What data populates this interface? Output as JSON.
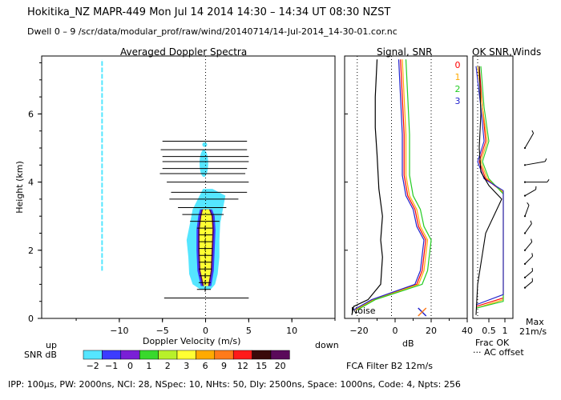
{
  "header": {
    "line1": "Hokitika_NZ   MAPR-449   Mon Jul 14 2014 14:30 – 14:34 UT 08:30 NZST",
    "line2": "Dwell   0 –   9    /scr/data/modular_prof/raw/wind/20140714/14-Jul-2014_14-30-01.cor.nc"
  },
  "footer": {
    "params": "IPP: 100μs,  PW: 2000ns,  NCI:  28,  NSpec: 10,  NHts: 50,  Dly: 2500ns,  Space: 1000ns,  Code: 4,  Npts: 256",
    "filter": "FCA Filter B2 12m/s"
  },
  "colors": {
    "snr_scale": [
      "#55e6ff",
      "#3c3cff",
      "#7a1fd6",
      "#39d92c",
      "#b8f02a",
      "#ffff33",
      "#ffaa00",
      "#ff7a1a",
      "#ff1a1a",
      "#3a0a0a",
      "#5a0a5a"
    ],
    "spectrum_outer": "#55e6ff",
    "spectrum_core": "#ffff33",
    "band_dark": "#3c3cff",
    "band_purple": "#5a0a5a",
    "speed_colors": [
      "#ff0000",
      "#ffaa00",
      "#22cc22",
      "#2222cc"
    ]
  },
  "chart_data": [
    {
      "id": "doppler_spectra",
      "type": "heatmap",
      "title": "Averaged Doppler Spectra",
      "xlabel": "Doppler Velocity (m/s)",
      "ylabel": "Height (km)",
      "xlim": [
        -19,
        15
      ],
      "ylim": [
        0,
        7.7
      ],
      "xticks": [
        -10,
        -5,
        0,
        5,
        10
      ],
      "yticks": [
        0,
        2,
        4,
        6
      ],
      "side_labels": {
        "left": "up",
        "right": "down"
      },
      "spectrum_cyan_extent": [
        {
          "h": 0.85,
          "lo": -0.6,
          "hi": 0.6
        },
        {
          "h": 1.0,
          "lo": -1.5,
          "hi": 1.1
        },
        {
          "h": 1.3,
          "lo": -1.9,
          "hi": 1.4
        },
        {
          "h": 1.8,
          "lo": -2.0,
          "hi": 1.6
        },
        {
          "h": 2.3,
          "lo": -2.2,
          "hi": 1.6
        },
        {
          "h": 2.8,
          "lo": -1.8,
          "hi": 1.7
        },
        {
          "h": 3.2,
          "lo": -1.5,
          "hi": 2.0
        },
        {
          "h": 3.6,
          "lo": -0.7,
          "hi": 2.3
        },
        {
          "h": 3.8,
          "lo": -0.3,
          "hi": 0.8
        }
      ],
      "spectrum_core_extent": [
        {
          "h": 0.95,
          "lo": -0.2,
          "hi": 0.3
        },
        {
          "h": 1.4,
          "lo": -0.6,
          "hi": 0.6
        },
        {
          "h": 2.0,
          "lo": -0.7,
          "hi": 0.7
        },
        {
          "h": 2.6,
          "lo": -0.7,
          "hi": 0.8
        },
        {
          "h": 3.0,
          "lo": -0.5,
          "hi": 0.7
        },
        {
          "h": 3.2,
          "lo": -0.3,
          "hi": 0.4
        }
      ],
      "upper_blob": {
        "h_center": 4.55,
        "v_center": -0.2,
        "h_half": 0.4,
        "v_half": 0.5
      },
      "upper_dot": {
        "h": 5.1,
        "v": -0.1
      },
      "noise_line": {
        "v": -12,
        "h_start": 1.4,
        "h_end": 7.6
      },
      "error_bars": [
        {
          "h": 0.6,
          "lo": -4.8,
          "hi": 5.0
        },
        {
          "h": 0.85,
          "lo": -1.0,
          "hi": 0.6
        },
        {
          "h": 1.05,
          "lo": -0.8,
          "hi": 0.6
        },
        {
          "h": 1.25,
          "lo": -0.7,
          "hi": 0.6
        },
        {
          "h": 1.45,
          "lo": -0.8,
          "hi": 0.7
        },
        {
          "h": 1.65,
          "lo": -0.8,
          "hi": 0.7
        },
        {
          "h": 1.85,
          "lo": -0.8,
          "hi": 0.8
        },
        {
          "h": 2.05,
          "lo": -0.8,
          "hi": 0.8
        },
        {
          "h": 2.25,
          "lo": -0.8,
          "hi": 0.8
        },
        {
          "h": 2.45,
          "lo": -0.8,
          "hi": 0.8
        },
        {
          "h": 2.65,
          "lo": -1.0,
          "hi": 0.8
        },
        {
          "h": 2.85,
          "lo": -1.8,
          "hi": 1.6
        },
        {
          "h": 3.05,
          "lo": -2.7,
          "hi": 2.1
        },
        {
          "h": 3.25,
          "lo": -3.2,
          "hi": 2.4
        },
        {
          "h": 3.5,
          "lo": -4.2,
          "hi": 3.8
        },
        {
          "h": 3.7,
          "lo": -4.0,
          "hi": 4.8
        },
        {
          "h": 4.0,
          "lo": -4.5,
          "hi": 5.0
        },
        {
          "h": 4.25,
          "lo": -5.3,
          "hi": 4.6
        },
        {
          "h": 4.4,
          "lo": -5.0,
          "hi": 4.8
        },
        {
          "h": 4.6,
          "lo": -5.0,
          "hi": 5.0
        },
        {
          "h": 4.75,
          "lo": -5.0,
          "hi": 5.0
        },
        {
          "h": 4.95,
          "lo": -5.2,
          "hi": 4.8
        },
        {
          "h": 5.2,
          "lo": -5.0,
          "hi": 4.8
        }
      ],
      "colorbar": {
        "label": "SNR dB",
        "ticks": [
          "−2",
          "−1",
          "0",
          "1",
          "2",
          "3",
          "6",
          "9",
          "12",
          "15",
          "20"
        ]
      }
    },
    {
      "id": "signal_snr",
      "type": "line",
      "title": "Signal, SNR",
      "xlabel": "dB",
      "xlim": [
        -28,
        40
      ],
      "ylim": [
        0,
        7.7
      ],
      "xticks": [
        -20,
        0,
        20,
        40
      ],
      "noise_label": "Noise",
      "dotted_x": [
        -21,
        -2,
        20
      ],
      "marker_x": 15,
      "series": [
        {
          "name": "signal",
          "color": "#000000",
          "points": [
            [
              -24,
              0.1
            ],
            [
              -23,
              0.35
            ],
            [
              -15,
              0.55
            ],
            [
              -8,
              1.0
            ],
            [
              -7,
              1.8
            ],
            [
              -8,
              2.3
            ],
            [
              -7,
              3.0
            ],
            [
              -9,
              3.8
            ],
            [
              -10,
              4.8
            ],
            [
              -11,
              5.6
            ],
            [
              -11,
              6.5
            ],
            [
              -10,
              7.6
            ]
          ]
        },
        {
          "name": "snr_0",
          "color": "#ff0000",
          "points": [
            [
              -22,
              0.25
            ],
            [
              -12,
              0.55
            ],
            [
              12,
              1.0
            ],
            [
              15,
              1.4
            ],
            [
              17,
              2.3
            ],
            [
              13,
              2.7
            ],
            [
              11,
              3.2
            ],
            [
              7,
              3.6
            ],
            [
              5,
              4.2
            ],
            [
              5,
              5.4
            ],
            [
              3,
              7.6
            ]
          ]
        },
        {
          "name": "snr_1",
          "color": "#ffaa00",
          "points": [
            [
              -22,
              0.25
            ],
            [
              -12,
              0.55
            ],
            [
              13,
              1.0
            ],
            [
              16,
              1.4
            ],
            [
              18,
              2.3
            ],
            [
              14,
              2.7
            ],
            [
              12,
              3.2
            ],
            [
              8,
              3.6
            ],
            [
              6,
              4.2
            ],
            [
              6,
              5.4
            ],
            [
              4,
              7.6
            ]
          ]
        },
        {
          "name": "snr_2",
          "color": "#22cc22",
          "points": [
            [
              -21,
              0.25
            ],
            [
              -11,
              0.55
            ],
            [
              15,
              1.0
            ],
            [
              18,
              1.4
            ],
            [
              20,
              2.3
            ],
            [
              16,
              2.7
            ],
            [
              14,
              3.2
            ],
            [
              10,
              3.6
            ],
            [
              8,
              4.2
            ],
            [
              8,
              5.4
            ],
            [
              6,
              7.6
            ]
          ]
        },
        {
          "name": "snr_3",
          "color": "#2222cc",
          "points": [
            [
              -23,
              0.25
            ],
            [
              -13,
              0.55
            ],
            [
              11,
              1.0
            ],
            [
              14,
              1.4
            ],
            [
              16,
              2.3
            ],
            [
              12,
              2.7
            ],
            [
              10,
              3.2
            ],
            [
              6,
              3.6
            ],
            [
              4,
              4.2
            ],
            [
              4,
              5.4
            ],
            [
              2,
              7.6
            ]
          ]
        }
      ]
    },
    {
      "id": "ok_snr_winds",
      "type": "line",
      "title": "OK SNR,Winds",
      "xlabel": "Frac OK",
      "xlim": [
        0,
        1.25
      ],
      "ylim": [
        0,
        7.7
      ],
      "xticks": [
        "0.5",
        "1"
      ],
      "legend": [
        "0",
        "1",
        "2",
        "3"
      ],
      "notes": {
        "offset": "AC offset",
        "max": "Max",
        "speed": "21m/s"
      },
      "series": [
        {
          "name": "0",
          "color": "#ff0000",
          "points": [
            [
              0.1,
              0.35
            ],
            [
              0.95,
              0.6
            ],
            [
              0.95,
              3.7
            ],
            [
              0.4,
              4.1
            ],
            [
              0.2,
              4.6
            ],
            [
              0.4,
              5.2
            ],
            [
              0.3,
              6.2
            ],
            [
              0.2,
              7.4
            ]
          ]
        },
        {
          "name": "1",
          "color": "#ffaa00",
          "points": [
            [
              0.1,
              0.3
            ],
            [
              0.95,
              0.55
            ],
            [
              0.95,
              3.7
            ],
            [
              0.45,
              4.1
            ],
            [
              0.25,
              4.6
            ],
            [
              0.45,
              5.2
            ],
            [
              0.3,
              6.2
            ],
            [
              0.15,
              7.4
            ]
          ]
        },
        {
          "name": "2",
          "color": "#22cc22",
          "points": [
            [
              0.1,
              0.3
            ],
            [
              0.95,
              0.5
            ],
            [
              0.95,
              3.65
            ],
            [
              0.5,
              4.1
            ],
            [
              0.3,
              4.6
            ],
            [
              0.5,
              5.2
            ],
            [
              0.35,
              6.2
            ],
            [
              0.25,
              7.4
            ]
          ]
        },
        {
          "name": "3",
          "color": "#2222cc",
          "points": [
            [
              0.1,
              0.4
            ],
            [
              0.95,
              0.7
            ],
            [
              0.95,
              3.75
            ],
            [
              0.35,
              4.1
            ],
            [
              0.15,
              4.6
            ],
            [
              0.35,
              5.2
            ],
            [
              0.25,
              6.2
            ],
            [
              0.1,
              7.4
            ]
          ]
        },
        {
          "name": "ac",
          "color": "#000000",
          "points": [
            [
              0.1,
              0.1
            ],
            [
              0.15,
              1.0
            ],
            [
              0.4,
              2.5
            ],
            [
              0.9,
              3.5
            ],
            [
              0.5,
              3.9
            ],
            [
              0.25,
              4.3
            ],
            [
              0.2,
              5.0
            ],
            [
              0.25,
              6.0
            ],
            [
              0.2,
              7.4
            ]
          ]
        }
      ],
      "wind_barbs": [
        {
          "h": 3.6,
          "dir": 240,
          "len": 0.35
        },
        {
          "h": 4.0,
          "dir": 270,
          "len": 0.9
        },
        {
          "h": 4.5,
          "dir": 260,
          "len": 0.8
        },
        {
          "h": 5.0,
          "dir": 210,
          "len": 0.6
        },
        {
          "h": 3.0,
          "dir": 200,
          "len": 0.3
        },
        {
          "h": 2.5,
          "dir": 215,
          "len": 0.3
        },
        {
          "h": 2.0,
          "dir": 220,
          "len": 0.25
        },
        {
          "h": 1.6,
          "dir": 225,
          "len": 0.25
        },
        {
          "h": 1.2,
          "dir": 230,
          "len": 0.2
        },
        {
          "h": 0.9,
          "dir": 230,
          "len": 0.2
        }
      ]
    }
  ]
}
